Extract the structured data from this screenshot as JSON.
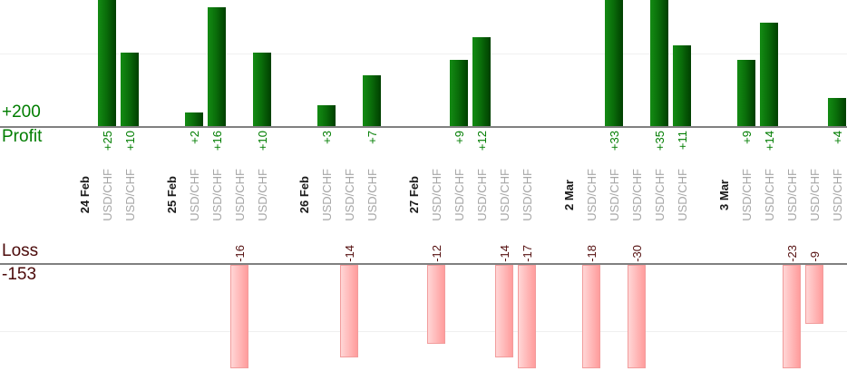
{
  "chart_data": {
    "type": "bar",
    "title": "",
    "profit_section": {
      "total_label": "+200",
      "axis_label": "Profit"
    },
    "loss_section": {
      "axis_label": "Loss",
      "total_label": "-153"
    },
    "gridlines": {
      "profit_at": 10,
      "loss_at": -10,
      "style": "faint horizontal"
    },
    "x_axis_note": "rotated labels: bold date per group, one USD/CHF label per trade",
    "groups": [
      {
        "date": "24 Feb",
        "trades": [
          {
            "symbol": "USD/CHF",
            "pl": 25
          },
          {
            "symbol": "USD/CHF",
            "pl": 10
          }
        ]
      },
      {
        "date": "25 Feb",
        "trades": [
          {
            "symbol": "USD/CHF",
            "pl": 2
          },
          {
            "symbol": "USD/CHF",
            "pl": 16
          },
          {
            "symbol": "USD/CHF",
            "pl": -16
          },
          {
            "symbol": "USD/CHF",
            "pl": 10
          }
        ]
      },
      {
        "date": "26 Feb",
        "trades": [
          {
            "symbol": "USD/CHF",
            "pl": 3
          },
          {
            "symbol": "USD/CHF",
            "pl": -14
          },
          {
            "symbol": "USD/CHF",
            "pl": 7
          }
        ]
      },
      {
        "date": "27 Feb",
        "trades": [
          {
            "symbol": "USD/CHF",
            "pl": -12
          },
          {
            "symbol": "USD/CHF",
            "pl": 9
          },
          {
            "symbol": "USD/CHF",
            "pl": 12
          },
          {
            "symbol": "USD/CHF",
            "pl": -14
          },
          {
            "symbol": "USD/CHF",
            "pl": -17
          }
        ]
      },
      {
        "date": "2 Mar",
        "trades": [
          {
            "symbol": "USD/CHF",
            "pl": -18
          },
          {
            "symbol": "USD/CHF",
            "pl": 33
          },
          {
            "symbol": "USD/CHF",
            "pl": -30
          },
          {
            "symbol": "USD/CHF",
            "pl": 35
          },
          {
            "symbol": "USD/CHF",
            "pl": 11
          }
        ]
      },
      {
        "date": "3 Mar",
        "trades": [
          {
            "symbol": "USD/CHF",
            "pl": 9
          },
          {
            "symbol": "USD/CHF",
            "pl": 14
          },
          {
            "symbol": "USD/CHF",
            "pl": -23
          },
          {
            "symbol": "USD/CHF",
            "pl": -9
          },
          {
            "symbol": "USD/CHF",
            "pl": 4
          }
        ]
      }
    ],
    "colors": {
      "profit_text": "#007d00",
      "loss_text": "#4b0a0a",
      "loss_value_text": "#551010",
      "bar_green_light": "#128812",
      "bar_green_mid": "#0a6e0a",
      "bar_green_dark": "#014201",
      "bar_pink_light": "#ffd6d6",
      "bar_pink_dark": "#ff9c9c",
      "bar_pink_border": "#f29c9c",
      "date_label": "#1a1a1a",
      "symbol_label": "#a6a6a6",
      "axis_line": "#808080",
      "gridline": "#f0f0f0"
    }
  }
}
